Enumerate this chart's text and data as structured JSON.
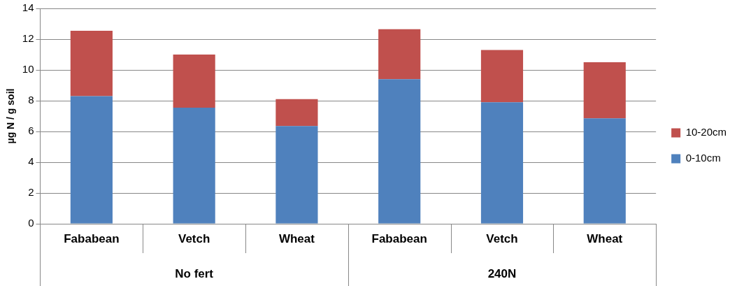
{
  "chart_data": {
    "type": "bar",
    "ylabel": "µg N / g soil",
    "categories": [
      "Fababean",
      "Vetch",
      "Wheat",
      "Fababean",
      "Vetch",
      "Wheat"
    ],
    "annotations": [
      "No fert",
      "240N"
    ],
    "series": [
      {
        "name": "0-10cm",
        "color": "#4f81bd",
        "values": [
          8.3,
          7.55,
          6.35,
          9.4,
          7.9,
          6.85
        ]
      },
      {
        "name": "10-20cm",
        "color": "#c0504d",
        "values": [
          4.25,
          3.45,
          1.75,
          3.25,
          3.4,
          3.65
        ]
      }
    ],
    "stacked": true,
    "ylim": [
      0,
      14
    ],
    "yticks": [
      0,
      2,
      4,
      6,
      8,
      10,
      12,
      14
    ],
    "grid": "y",
    "legend": "right"
  }
}
